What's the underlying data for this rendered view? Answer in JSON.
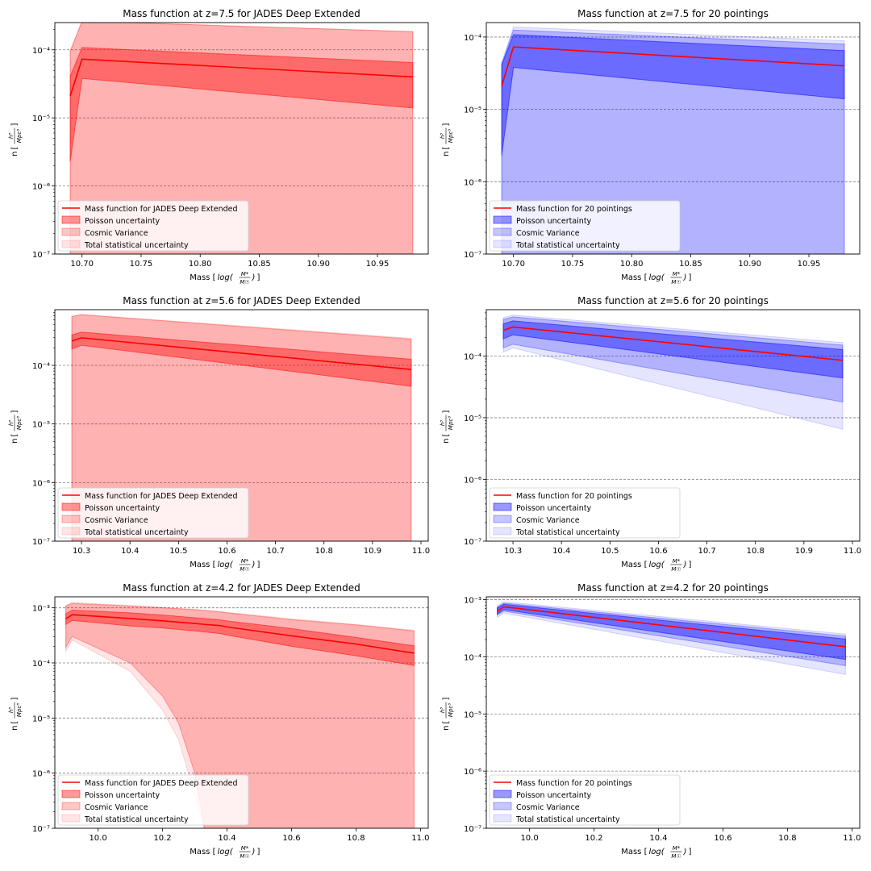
{
  "figure": {
    "background": "#ffffff"
  },
  "legend_position": "lower-left",
  "chart_data": [
    {
      "type": "area",
      "title": "Mass function at z=7.5 for JADES Deep Extended",
      "ylabel_main": "n",
      "ylabel_unit_num": "h³",
      "ylabel_unit_den": "Mpc³",
      "xlabel_main": "Mass",
      "xlabel_unit_pre": "log(",
      "xlabel_unit_num": "M*",
      "xlabel_unit_den": "M☉",
      "xlabel_unit_post": ")",
      "yscale": "log",
      "ylim_exp": [
        -7,
        -3.6
      ],
      "xlim": [
        10.677,
        10.993
      ],
      "xticks": [
        10.7,
        10.75,
        10.8,
        10.85,
        10.9,
        10.95
      ],
      "xtick_labels": [
        "10.70",
        "10.75",
        "10.80",
        "10.85",
        "10.90",
        "10.95"
      ],
      "yticks_exp": [
        -7,
        -6,
        -5,
        -4
      ],
      "ytick_labels": [
        "10⁻⁷",
        "10⁻⁶",
        "10⁻⁵",
        "10⁻⁴"
      ],
      "grid": "y-major-dashed",
      "color_line": "#ff0000",
      "color_fill": "#ff0000",
      "x": [
        10.69,
        10.7,
        10.98
      ],
      "mass_function": [
        2.1e-05,
        7.3e-05,
        4e-05
      ],
      "poisson_band": {
        "low": [
          2.3e-06,
          3.8e-05,
          1.4e-05
        ],
        "high": [
          4.1e-05,
          0.000108,
          6.5e-05
        ]
      },
      "cosmic_variance_band": {
        "low": [
          1e-08,
          1e-08,
          1e-08
        ],
        "high": [
          9.6e-05,
          0.0003,
          0.000185
        ]
      },
      "total_band": {
        "low": [
          1e-08,
          1e-08,
          1e-08
        ],
        "high": [
          9.6e-05,
          0.0003,
          0.000185
        ]
      },
      "legend": [
        "Mass function for JADES Deep Extended",
        "Poisson uncertainty",
        "Cosmic Variance",
        "Total statistical uncertainty"
      ]
    },
    {
      "type": "area",
      "title": "Mass function at z=7.5 for 20 pointings",
      "ylabel_main": "n",
      "ylabel_unit_num": "h³",
      "ylabel_unit_den": "Mpc³",
      "xlabel_main": "Mass",
      "xlabel_unit_pre": "log(",
      "xlabel_unit_num": "M*",
      "xlabel_unit_den": "M☉",
      "xlabel_unit_post": ")",
      "yscale": "log",
      "ylim_exp": [
        -7,
        -3.8
      ],
      "xlim": [
        10.677,
        10.993
      ],
      "xticks": [
        10.7,
        10.75,
        10.8,
        10.85,
        10.9,
        10.95
      ],
      "xtick_labels": [
        "10.70",
        "10.75",
        "10.80",
        "10.85",
        "10.90",
        "10.95"
      ],
      "yticks_exp": [
        -7,
        -6,
        -5,
        -4
      ],
      "ytick_labels": [
        "10⁻⁷",
        "10⁻⁶",
        "10⁻⁵",
        "10⁻⁴"
      ],
      "grid": "y-major-dashed",
      "color_line": "#ff0000",
      "color_fill": "#0000ff",
      "x": [
        10.69,
        10.7,
        10.98
      ],
      "mass_function": [
        2.1e-05,
        7.3e-05,
        4e-05
      ],
      "poisson_band": {
        "low": [
          2.3e-06,
          3.8e-05,
          1.4e-05
        ],
        "high": [
          4.1e-05,
          0.000108,
          6.5e-05
        ]
      },
      "cosmic_variance_band": {
        "low": [
          1e-08,
          1e-08,
          1e-08
        ],
        "high": [
          4.2e-05,
          0.000125,
          8e-05
        ]
      },
      "total_band": {
        "low": [
          1e-08,
          1e-08,
          1e-08
        ],
        "high": [
          4.5e-05,
          0.000138,
          8.9e-05
        ]
      },
      "legend": [
        "Mass function for 20 pointings",
        "Poisson uncertainty",
        "Cosmic Variance",
        "Total statistical uncertainty"
      ]
    },
    {
      "type": "area",
      "title": "Mass function at z=5.6 for JADES Deep Extended",
      "ylabel_main": "n",
      "ylabel_unit_num": "h³",
      "ylabel_unit_den": "Mpc³",
      "xlabel_main": "Mass",
      "xlabel_unit_pre": "log(",
      "xlabel_unit_num": "M*",
      "xlabel_unit_den": "M☉",
      "xlabel_unit_post": ")",
      "yscale": "log",
      "ylim_exp": [
        -7,
        -3.05
      ],
      "xlim": [
        10.245,
        11.015
      ],
      "xticks": [
        10.3,
        10.4,
        10.5,
        10.6,
        10.7,
        10.8,
        10.9,
        11.0
      ],
      "xtick_labels": [
        "10.3",
        "10.4",
        "10.5",
        "10.6",
        "10.7",
        "10.8",
        "10.9",
        "11.0"
      ],
      "yticks_exp": [
        -7,
        -6,
        -5,
        -4
      ],
      "ytick_labels": [
        "10⁻⁷",
        "10⁻⁶",
        "10⁻⁵",
        "10⁻⁴"
      ],
      "grid": "y-major-dashed",
      "color_line": "#ff0000",
      "color_fill": "#ff0000",
      "x": [
        10.28,
        10.3,
        10.98
      ],
      "mass_function": [
        0.00026,
        0.000295,
        8.5e-05
      ],
      "poisson_band": {
        "low": [
          0.00019,
          0.00022,
          4.4e-05
        ],
        "high": [
          0.00033,
          0.00037,
          0.000127
        ]
      },
      "cosmic_variance_band": {
        "low": [
          1e-08,
          1e-08,
          1e-08
        ],
        "high": [
          0.00068,
          0.00073,
          0.00028
        ]
      },
      "total_band": {
        "low": [
          1e-08,
          1e-08,
          1e-08
        ],
        "high": [
          0.00069,
          0.00074,
          0.00029
        ]
      },
      "legend": [
        "Mass function for JADES Deep Extended",
        "Poisson uncertainty",
        "Cosmic Variance",
        "Total statistical uncertainty"
      ]
    },
    {
      "type": "area",
      "title": "Mass function at z=5.6 for 20 pointings",
      "ylabel_main": "n",
      "ylabel_unit_num": "h³",
      "ylabel_unit_den": "Mpc³",
      "xlabel_main": "Mass",
      "xlabel_unit_pre": "log(",
      "xlabel_unit_num": "M*",
      "xlabel_unit_den": "M☉",
      "xlabel_unit_post": ")",
      "yscale": "log",
      "ylim_exp": [
        -7,
        -3.25
      ],
      "xlim": [
        10.245,
        11.015
      ],
      "xticks": [
        10.3,
        10.4,
        10.5,
        10.6,
        10.7,
        10.8,
        10.9,
        11.0
      ],
      "xtick_labels": [
        "10.3",
        "10.4",
        "10.5",
        "10.6",
        "10.7",
        "10.8",
        "10.9",
        "11.0"
      ],
      "yticks_exp": [
        -7,
        -6,
        -5,
        -4
      ],
      "ytick_labels": [
        "10⁻⁷",
        "10⁻⁶",
        "10⁻⁵",
        "10⁻⁴"
      ],
      "grid": "y-major-dashed",
      "color_line": "#ff0000",
      "color_fill": "#0000ff",
      "x": [
        10.28,
        10.3,
        10.98
      ],
      "mass_function": [
        0.00026,
        0.000295,
        8.5e-05
      ],
      "poisson_band": {
        "low": [
          0.00019,
          0.00022,
          4.4e-05
        ],
        "high": [
          0.00033,
          0.00037,
          0.000127
        ]
      },
      "cosmic_variance_band": {
        "low": [
          0.000135,
          0.000155,
          1.8e-05
        ],
        "high": [
          0.00039,
          0.00043,
          0.00015
        ]
      },
      "total_band": {
        "low": [
          0.000115,
          0.000135,
          6.5e-06
        ],
        "high": [
          0.00042,
          0.00046,
          0.000165
        ]
      },
      "legend": [
        "Mass function for 20 pointings",
        "Poisson uncertainty",
        "Cosmic Variance",
        "Total statistical uncertainty"
      ]
    },
    {
      "type": "area",
      "title": "Mass function at z=4.2 for JADES Deep Extended",
      "ylabel_main": "n",
      "ylabel_unit_num": "h³",
      "ylabel_unit_den": "Mpc³",
      "xlabel_main": "Mass",
      "xlabel_unit_pre": "log(",
      "xlabel_unit_num": "M*",
      "xlabel_unit_den": "M☉",
      "xlabel_unit_post": ")",
      "yscale": "log",
      "ylim_exp": [
        -7,
        -2.8
      ],
      "xlim": [
        9.866,
        11.024
      ],
      "xticks": [
        10.0,
        10.2,
        10.4,
        10.6,
        10.8,
        11.0
      ],
      "xtick_labels": [
        "10.0",
        "10.2",
        "10.4",
        "10.6",
        "10.8",
        "11.0"
      ],
      "yticks_exp": [
        -7,
        -6,
        -5,
        -4,
        -3
      ],
      "ytick_labels": [
        "10⁻⁷",
        "10⁻⁶",
        "10⁻⁵",
        "10⁻⁴",
        "10⁻³"
      ],
      "grid": "y-major-dashed",
      "color_line": "#ff0000",
      "color_fill": "#ff0000",
      "x": [
        9.9,
        9.92,
        10.1,
        10.2,
        10.25,
        10.3,
        10.33,
        10.35,
        10.36,
        10.37,
        10.38,
        10.4,
        10.6,
        10.8,
        10.98
      ],
      "mass_function": [
        0.00063,
        0.00075,
        0.00064,
        0.00058,
        0.00055,
        0.00052,
        0.0005,
        0.00049,
        0.000485,
        0.00048,
        0.000475,
        0.00045,
        0.00031,
        0.00022,
        0.00015
      ],
      "poisson_band": {
        "low": [
          0.0005,
          0.00059,
          0.00047,
          0.00043,
          0.000405,
          0.00038,
          0.000365,
          0.000355,
          0.00035,
          0.000345,
          0.00034,
          0.00032,
          0.0002,
          0.000135,
          9e-05
        ],
        "high": [
          0.00078,
          0.00091,
          0.00081,
          0.00074,
          0.0007,
          0.00066,
          0.00064,
          0.000625,
          0.00062,
          0.000615,
          0.000605,
          0.00058,
          0.00042,
          0.00029,
          0.000205
        ]
      },
      "cosmic_variance_band": {
        "low": [
          0.00019,
          0.0003,
          0.0001,
          2.5e-05,
          8e-06,
          1e-06,
          1e-07,
          1e-08,
          1e-08,
          1e-08,
          1e-08,
          1e-08,
          1e-08,
          1e-08,
          1e-08
        ],
        "high": [
          0.00108,
          0.0012,
          0.00108,
          0.001,
          0.00096,
          0.00092,
          0.00089,
          0.00087,
          0.00086,
          0.00085,
          0.00084,
          0.00081,
          0.00061,
          0.00049,
          0.00038
        ]
      },
      "total_band": {
        "low": [
          0.00016,
          0.00026,
          7e-05,
          1.4e-05,
          4e-06,
          4e-07,
          1.5e-08,
          1e-08,
          1e-08,
          1e-08,
          1e-08,
          1e-08,
          1e-08,
          1e-08,
          1e-08
        ],
        "high": [
          0.0011,
          0.00125,
          0.0011,
          0.00102,
          0.00098,
          0.00094,
          0.00091,
          0.00089,
          0.00088,
          0.00087,
          0.00086,
          0.00083,
          0.00063,
          0.0005,
          0.00039
        ]
      },
      "legend": [
        "Mass function for JADES Deep Extended",
        "Poisson uncertainty",
        "Cosmic Variance",
        "Total statistical uncertainty"
      ]
    },
    {
      "type": "area",
      "title": "Mass function at z=4.2 for 20 pointings",
      "ylabel_main": "n",
      "ylabel_unit_num": "h³",
      "ylabel_unit_den": "Mpc³",
      "xlabel_main": "Mass",
      "xlabel_unit_pre": "log(",
      "xlabel_unit_num": "M*",
      "xlabel_unit_den": "M☉",
      "xlabel_unit_post": ")",
      "yscale": "log",
      "ylim_exp": [
        -7,
        -2.95
      ],
      "xlim": [
        9.866,
        11.024
      ],
      "xticks": [
        10.0,
        10.2,
        10.4,
        10.6,
        10.8,
        11.0
      ],
      "xtick_labels": [
        "10.0",
        "10.2",
        "10.4",
        "10.6",
        "10.8",
        "11.0"
      ],
      "yticks_exp": [
        -7,
        -6,
        -5,
        -4,
        -3
      ],
      "ytick_labels": [
        "10⁻⁷",
        "10⁻⁶",
        "10⁻⁵",
        "10⁻⁴",
        "10⁻³"
      ],
      "grid": "y-major-dashed",
      "color_line": "#ff0000",
      "color_fill": "#0000ff",
      "x": [
        9.9,
        9.92,
        10.98
      ],
      "mass_function": [
        0.00063,
        0.00075,
        0.00015
      ],
      "poisson_band": {
        "low": [
          0.00056,
          0.00067,
          9e-05
        ],
        "high": [
          0.00071,
          0.00083,
          0.000205
        ]
      },
      "cosmic_variance_band": {
        "low": [
          0.00054,
          0.00063,
          7e-05
        ],
        "high": [
          0.00074,
          0.00087,
          0.00023
        ]
      },
      "total_band": {
        "low": [
          0.00049,
          0.00058,
          4.9e-05
        ],
        "high": [
          0.00078,
          0.00092,
          0.00025
        ]
      },
      "legend": [
        "Mass function for 20 pointings",
        "Poisson uncertainty",
        "Cosmic Variance",
        "Total statistical uncertainty"
      ]
    }
  ]
}
